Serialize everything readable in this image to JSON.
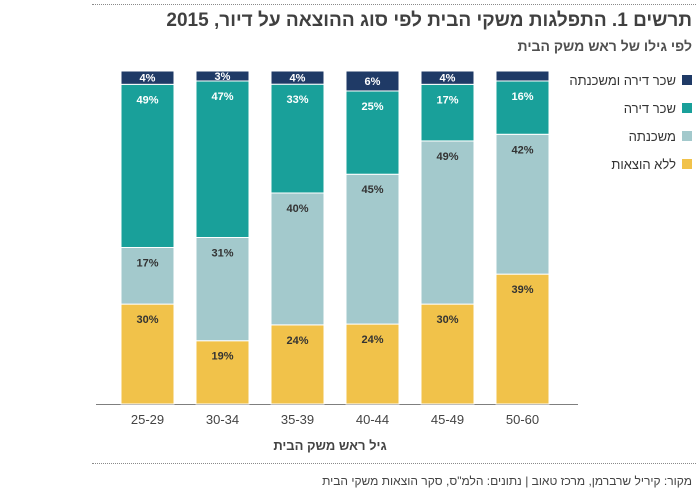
{
  "page": {
    "title": "תרשים 1. התפלגות משקי הבית לפי סוג ההוצאה על דיור, 2015",
    "subtitle": "לפי גילו של ראש משק הבית",
    "source": "מקור: קיריל שרברמן, מרכז טאוב | נתונים: הלמ\"ס, סקר הוצאות משקי הבית"
  },
  "legend": [
    {
      "label": "שכר דירה ומשכנתה",
      "color": "#1f3a66"
    },
    {
      "label": "שכר דירה",
      "color": "#19a09a"
    },
    {
      "label": "משכנתה",
      "color": "#a3c9cc"
    },
    {
      "label": "ללא הוצאות",
      "color": "#f1c24a"
    }
  ],
  "chart_data": {
    "type": "bar",
    "stacked": true,
    "title": "תרשים 1. התפלגות משקי הבית לפי סוג ההוצאה על דיור, 2015",
    "xlabel": "גיל ראש משק הבית",
    "ylabel": "",
    "ylim": [
      0,
      100
    ],
    "categories": [
      "25-29",
      "30-34",
      "35-39",
      "40-44",
      "45-49",
      "50-60"
    ],
    "series": [
      {
        "name": "ללא הוצאות",
        "color": "#f1c24a",
        "values": [
          30,
          19,
          24,
          24,
          30,
          39
        ],
        "labels": [
          "30%",
          "19%",
          "24%",
          "24%",
          "30%",
          "39%"
        ]
      },
      {
        "name": "משכנתה",
        "color": "#a3c9cc",
        "values": [
          17,
          31,
          40,
          45,
          49,
          42
        ],
        "labels": [
          "17%",
          "31%",
          "40%",
          "45%",
          "49%",
          "42%"
        ]
      },
      {
        "name": "שכר דירה",
        "color": "#19a09a",
        "values": [
          49,
          47,
          33,
          25,
          17,
          16
        ],
        "labels": [
          "49%",
          "47%",
          "33%",
          "25%",
          "17%",
          "16%"
        ]
      },
      {
        "name": "שכר דירה ומשכנתה",
        "color": "#1f3a66",
        "values": [
          4,
          3,
          4,
          6,
          4,
          3
        ],
        "labels": [
          "4%",
          "3%",
          "4%",
          "6%",
          "4%",
          ""
        ]
      }
    ]
  }
}
